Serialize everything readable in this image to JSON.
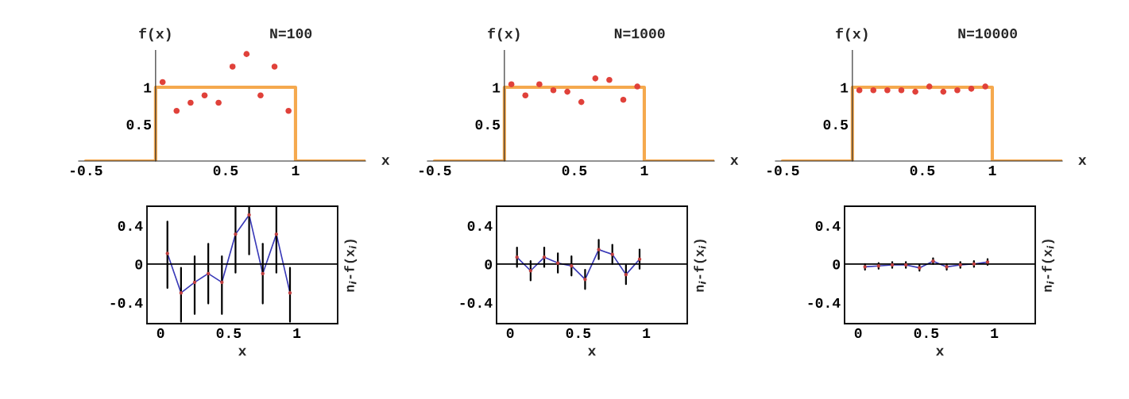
{
  "chart_data": [
    {
      "type": "line",
      "title": "N=100",
      "xlabel": "x",
      "ylabel": "f(x)",
      "xlim": [
        -0.55,
        1.5
      ],
      "ylim": [
        0,
        1.5
      ],
      "xticks": [
        -0.5,
        0.5,
        1
      ],
      "yticks": [
        0.5,
        1
      ],
      "series": [
        {
          "type": "line",
          "color": "#f5a94e",
          "x": [
            -0.5,
            0,
            0,
            1,
            1,
            1.5
          ],
          "values": [
            0,
            0,
            1,
            1,
            0,
            0
          ]
        },
        {
          "type": "scatter",
          "color": "#e0413a",
          "marker": "circle",
          "x": [
            0.05,
            0.15,
            0.25,
            0.35,
            0.45,
            0.55,
            0.65,
            0.75,
            0.85,
            0.95
          ],
          "values": [
            1.07,
            0.68,
            0.79,
            0.89,
            0.79,
            1.28,
            1.45,
            0.89,
            1.28,
            0.68
          ]
        }
      ]
    },
    {
      "type": "line",
      "title": "N=1000",
      "xlabel": "x",
      "ylabel": "f(x)",
      "xlim": [
        -0.55,
        1.5
      ],
      "ylim": [
        0,
        1.5
      ],
      "xticks": [
        -0.5,
        0.5,
        1
      ],
      "yticks": [
        0.5,
        1
      ],
      "series": [
        {
          "type": "line",
          "color": "#f5a94e",
          "x": [
            -0.5,
            0,
            0,
            1,
            1,
            1.5
          ],
          "values": [
            0,
            0,
            1,
            1,
            0,
            0
          ]
        },
        {
          "type": "scatter",
          "color": "#e0413a",
          "marker": "circle",
          "x": [
            0.05,
            0.15,
            0.25,
            0.35,
            0.45,
            0.55,
            0.65,
            0.75,
            0.85,
            0.95
          ],
          "values": [
            1.04,
            0.89,
            1.04,
            0.96,
            0.94,
            0.8,
            1.12,
            1.1,
            0.83,
            1.01
          ]
        }
      ]
    },
    {
      "type": "line",
      "title": "N=10000",
      "xlabel": "x",
      "ylabel": "f(x)",
      "xlim": [
        -0.55,
        1.5
      ],
      "ylim": [
        0,
        1.5
      ],
      "xticks": [
        -0.5,
        0.5,
        1
      ],
      "yticks": [
        0.5,
        1
      ],
      "series": [
        {
          "type": "line",
          "color": "#f5a94e",
          "x": [
            -0.5,
            0,
            0,
            1,
            1,
            1.5
          ],
          "values": [
            0,
            0,
            1,
            1,
            0,
            0
          ]
        },
        {
          "type": "scatter",
          "color": "#e0413a",
          "marker": "circle",
          "x": [
            0.05,
            0.15,
            0.25,
            0.35,
            0.45,
            0.55,
            0.65,
            0.75,
            0.85,
            0.95
          ],
          "values": [
            0.96,
            0.96,
            0.96,
            0.96,
            0.94,
            1.01,
            0.94,
            0.96,
            0.98,
            1.01
          ]
        }
      ]
    },
    {
      "type": "line",
      "xlabel": "x",
      "ylabel": "n$_{i}$-f(x$_{i}$)",
      "xlim": [
        -0.1,
        1.3
      ],
      "ylim": [
        -0.62,
        0.6
      ],
      "xticks": [
        0,
        0.5,
        1
      ],
      "yticks": [
        0.4,
        0,
        -0.4
      ],
      "ref_lines": [
        {
          "axis": "y",
          "value": 0,
          "color": "#000000"
        }
      ],
      "series": [
        {
          "type": "line",
          "color": "#3a3ab8",
          "x": [
            0.05,
            0.15,
            0.25,
            0.35,
            0.45,
            0.55,
            0.65,
            0.75,
            0.85,
            0.95
          ],
          "values": [
            0.11,
            -0.3,
            -0.19,
            -0.1,
            -0.19,
            0.31,
            0.51,
            -0.1,
            0.31,
            -0.3
          ]
        },
        {
          "type": "scatter",
          "color": "#c04040",
          "marker": "circle",
          "x": [
            0.05,
            0.15,
            0.25,
            0.35,
            0.45,
            0.55,
            0.65,
            0.75,
            0.85,
            0.95
          ],
          "values": [
            0.11,
            -0.3,
            -0.19,
            -0.1,
            -0.19,
            0.31,
            0.51,
            -0.1,
            0.31,
            -0.3
          ],
          "errors": [
            [
              -0.25,
              0.44
            ],
            [
              -0.6,
              -0.04
            ],
            [
              -0.52,
              0.08
            ],
            [
              -0.41,
              0.21
            ],
            [
              -0.52,
              0.08
            ],
            [
              -0.09,
              0.6
            ],
            [
              0.1,
              0.6
            ],
            [
              -0.41,
              0.21
            ],
            [
              -0.09,
              0.6
            ],
            [
              -0.6,
              -0.04
            ]
          ]
        }
      ]
    },
    {
      "type": "line",
      "xlabel": "x",
      "ylabel": "n$_{i}$-f(x$_{i}$)",
      "xlim": [
        -0.1,
        1.3
      ],
      "ylim": [
        -0.62,
        0.6
      ],
      "xticks": [
        0,
        0.5,
        1
      ],
      "yticks": [
        0.4,
        0,
        -0.4
      ],
      "ref_lines": [
        {
          "axis": "y",
          "value": 0,
          "color": "#000000"
        }
      ],
      "series": [
        {
          "type": "line",
          "color": "#3a3ab8",
          "x": [
            0.05,
            0.15,
            0.25,
            0.35,
            0.45,
            0.55,
            0.65,
            0.75,
            0.85,
            0.95
          ],
          "values": [
            0.07,
            -0.07,
            0.07,
            0.01,
            -0.02,
            -0.16,
            0.15,
            0.1,
            -0.11,
            0.05
          ]
        },
        {
          "type": "scatter",
          "color": "#c04040",
          "marker": "circle",
          "x": [
            0.05,
            0.15,
            0.25,
            0.35,
            0.45,
            0.55,
            0.65,
            0.75,
            0.85,
            0.95
          ],
          "values": [
            0.07,
            -0.07,
            0.07,
            0.01,
            -0.02,
            -0.16,
            0.15,
            0.1,
            -0.11,
            0.05
          ],
          "errors": [
            0.1,
            0.1,
            0.1,
            0.1,
            0.1,
            0.1,
            0.1,
            0.1,
            0.1,
            0.1
          ]
        }
      ]
    },
    {
      "type": "line",
      "xlabel": "x",
      "ylabel": "n$_{i}$-f(x$_{i}$)",
      "xlim": [
        -0.1,
        1.3
      ],
      "ylim": [
        -0.62,
        0.6
      ],
      "xticks": [
        0,
        0.5,
        1
      ],
      "yticks": [
        0.4,
        0,
        -0.4
      ],
      "ref_lines": [
        {
          "axis": "y",
          "value": 0,
          "color": "#000000"
        }
      ],
      "series": [
        {
          "type": "line",
          "color": "#3a3ab8",
          "x": [
            0.05,
            0.15,
            0.25,
            0.35,
            0.45,
            0.55,
            0.65,
            0.75,
            0.85,
            0.95
          ],
          "values": [
            -0.03,
            -0.02,
            -0.01,
            -0.01,
            -0.04,
            0.03,
            -0.03,
            -0.01,
            0.0,
            0.02
          ]
        },
        {
          "type": "scatter",
          "color": "#c04040",
          "marker": "circle",
          "x": [
            0.05,
            0.15,
            0.25,
            0.35,
            0.45,
            0.55,
            0.65,
            0.75,
            0.85,
            0.95
          ],
          "values": [
            -0.03,
            -0.02,
            -0.01,
            -0.01,
            -0.04,
            0.03,
            -0.03,
            -0.01,
            0.0,
            0.02
          ],
          "errors": [
            0.03,
            0.03,
            0.03,
            0.03,
            0.03,
            0.03,
            0.03,
            0.03,
            0.03,
            0.03
          ]
        }
      ]
    }
  ]
}
